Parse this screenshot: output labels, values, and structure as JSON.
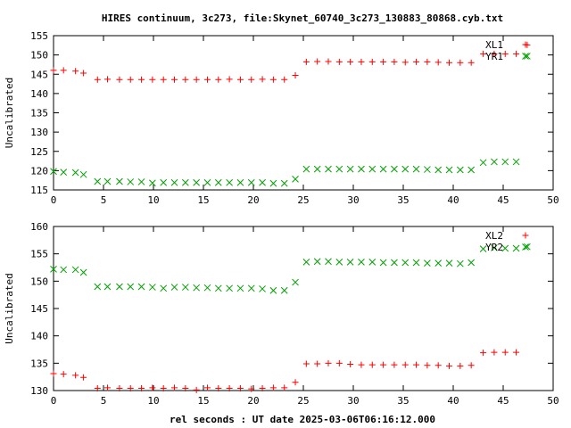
{
  "title": "HIRES continuum, 3c273, file:Skynet_60740_3c273_130883_80868.cyb.txt",
  "xlabel": "rel seconds : UT date 2025-03-06T06:16:12.000",
  "colors": {
    "red": "#ff0000",
    "green": "#00a000",
    "axis": "#000000"
  },
  "chart_data": [
    {
      "type": "scatter",
      "ylabel": "Uncalibrated",
      "xlim": [
        0,
        50
      ],
      "ylim": [
        115,
        155
      ],
      "xticks": [
        0,
        5,
        10,
        15,
        20,
        25,
        30,
        35,
        40,
        45,
        50
      ],
      "yticks": [
        115,
        120,
        125,
        130,
        135,
        140,
        145,
        150,
        155
      ],
      "legend_position": "top-right",
      "series": [
        {
          "name": "XL1",
          "marker": "plus",
          "color": "#ff0000",
          "x": [
            0,
            1,
            2.2,
            3,
            4.4,
            5.4,
            6.6,
            7.7,
            8.8,
            9.9,
            11,
            12.1,
            13.2,
            14.3,
            15.4,
            16.5,
            17.6,
            18.7,
            19.8,
            20.9,
            22,
            23.1,
            24.2,
            25.3,
            26.4,
            27.5,
            28.6,
            29.7,
            30.8,
            31.9,
            33,
            34.1,
            35.2,
            36.3,
            37.4,
            38.5,
            39.6,
            40.7,
            41.8,
            43,
            44.1,
            45.2,
            46.3,
            47.4
          ],
          "y": [
            146.0,
            146.0,
            145.8,
            145.3,
            143.6,
            143.7,
            143.6,
            143.6,
            143.6,
            143.6,
            143.6,
            143.6,
            143.6,
            143.6,
            143.6,
            143.6,
            143.7,
            143.6,
            143.6,
            143.7,
            143.6,
            143.6,
            144.7,
            148.2,
            148.3,
            148.3,
            148.2,
            148.2,
            148.2,
            148.2,
            148.2,
            148.2,
            148.1,
            148.2,
            148.2,
            148.1,
            148.0,
            148.0,
            148.0,
            150.3,
            150.3,
            150.3,
            150.3,
            152.6
          ]
        },
        {
          "name": "YR1",
          "marker": "cross",
          "color": "#00a000",
          "x": [
            0,
            1,
            2.2,
            3,
            4.4,
            5.4,
            6.6,
            7.7,
            8.8,
            9.9,
            11,
            12.1,
            13.2,
            14.3,
            15.4,
            16.5,
            17.6,
            18.7,
            19.8,
            20.9,
            22,
            23.1,
            24.2,
            25.3,
            26.4,
            27.5,
            28.6,
            29.7,
            30.8,
            31.9,
            33,
            34.1,
            35.2,
            36.3,
            37.4,
            38.5,
            39.6,
            40.7,
            41.8,
            43,
            44.1,
            45.2,
            46.3,
            47.4
          ],
          "y": [
            119.8,
            119.6,
            119.5,
            119.0,
            117.2,
            117.2,
            117.2,
            117.1,
            117.1,
            116.8,
            116.9,
            116.9,
            116.9,
            116.9,
            116.9,
            116.9,
            116.9,
            116.9,
            116.9,
            116.9,
            116.7,
            116.7,
            117.8,
            120.4,
            120.4,
            120.4,
            120.4,
            120.4,
            120.4,
            120.4,
            120.4,
            120.4,
            120.4,
            120.4,
            120.3,
            120.2,
            120.2,
            120.2,
            120.2,
            122.1,
            122.3,
            122.3,
            122.3,
            149.7
          ]
        }
      ]
    },
    {
      "type": "scatter",
      "ylabel": "Uncalibrated",
      "xlim": [
        0,
        50
      ],
      "ylim": [
        130,
        160
      ],
      "xticks": [
        0,
        5,
        10,
        15,
        20,
        25,
        30,
        35,
        40,
        45,
        50
      ],
      "yticks": [
        130,
        135,
        140,
        145,
        150,
        155,
        160
      ],
      "legend_position": "top-right",
      "series": [
        {
          "name": "XL2",
          "marker": "plus",
          "color": "#ff0000",
          "x": [
            0,
            1,
            2.2,
            3,
            4.4,
            5.4,
            6.6,
            7.7,
            8.8,
            9.9,
            11,
            12.1,
            13.2,
            14.3,
            15.4,
            16.5,
            17.6,
            18.7,
            19.8,
            20.9,
            22,
            23.1,
            24.2,
            25.3,
            26.4,
            27.5,
            28.6,
            29.7,
            30.8,
            31.9,
            33,
            34.1,
            35.2,
            36.3,
            37.4,
            38.5,
            39.6,
            40.7,
            41.8,
            43,
            44.1,
            45.2,
            46.3
          ],
          "y": [
            133.1,
            133.0,
            132.8,
            132.4,
            130.4,
            130.5,
            130.4,
            130.4,
            130.4,
            130.5,
            130.4,
            130.5,
            130.4,
            130.1,
            130.5,
            130.4,
            130.4,
            130.4,
            130.3,
            130.4,
            130.5,
            130.5,
            131.5,
            134.9,
            134.9,
            135.0,
            135.0,
            134.8,
            134.7,
            134.7,
            134.7,
            134.7,
            134.7,
            134.7,
            134.6,
            134.6,
            134.5,
            134.5,
            134.6,
            136.9,
            137.0,
            137.0,
            137.0
          ]
        },
        {
          "name": "YR2",
          "marker": "cross",
          "color": "#00a000",
          "x": [
            0,
            1,
            2.2,
            3,
            4.4,
            5.4,
            6.6,
            7.7,
            8.8,
            9.9,
            11,
            12.1,
            13.2,
            14.3,
            15.4,
            16.5,
            17.6,
            18.7,
            19.8,
            20.9,
            22,
            23.1,
            24.2,
            25.3,
            26.4,
            27.5,
            28.6,
            29.7,
            30.8,
            31.9,
            33,
            34.1,
            35.2,
            36.3,
            37.4,
            38.5,
            39.6,
            40.7,
            41.8,
            43,
            44.1,
            45.2,
            46.3,
            47.4
          ],
          "y": [
            152.2,
            152.1,
            152.1,
            151.6,
            149.0,
            149.0,
            149.0,
            149.0,
            149.0,
            148.9,
            148.7,
            148.9,
            148.9,
            148.8,
            148.8,
            148.7,
            148.7,
            148.7,
            148.7,
            148.6,
            148.3,
            148.3,
            149.8,
            153.5,
            153.6,
            153.6,
            153.5,
            153.5,
            153.5,
            153.5,
            153.4,
            153.4,
            153.4,
            153.4,
            153.3,
            153.3,
            153.3,
            153.2,
            153.4,
            155.9,
            156.1,
            156.0,
            156.0,
            156.3
          ]
        }
      ]
    }
  ]
}
